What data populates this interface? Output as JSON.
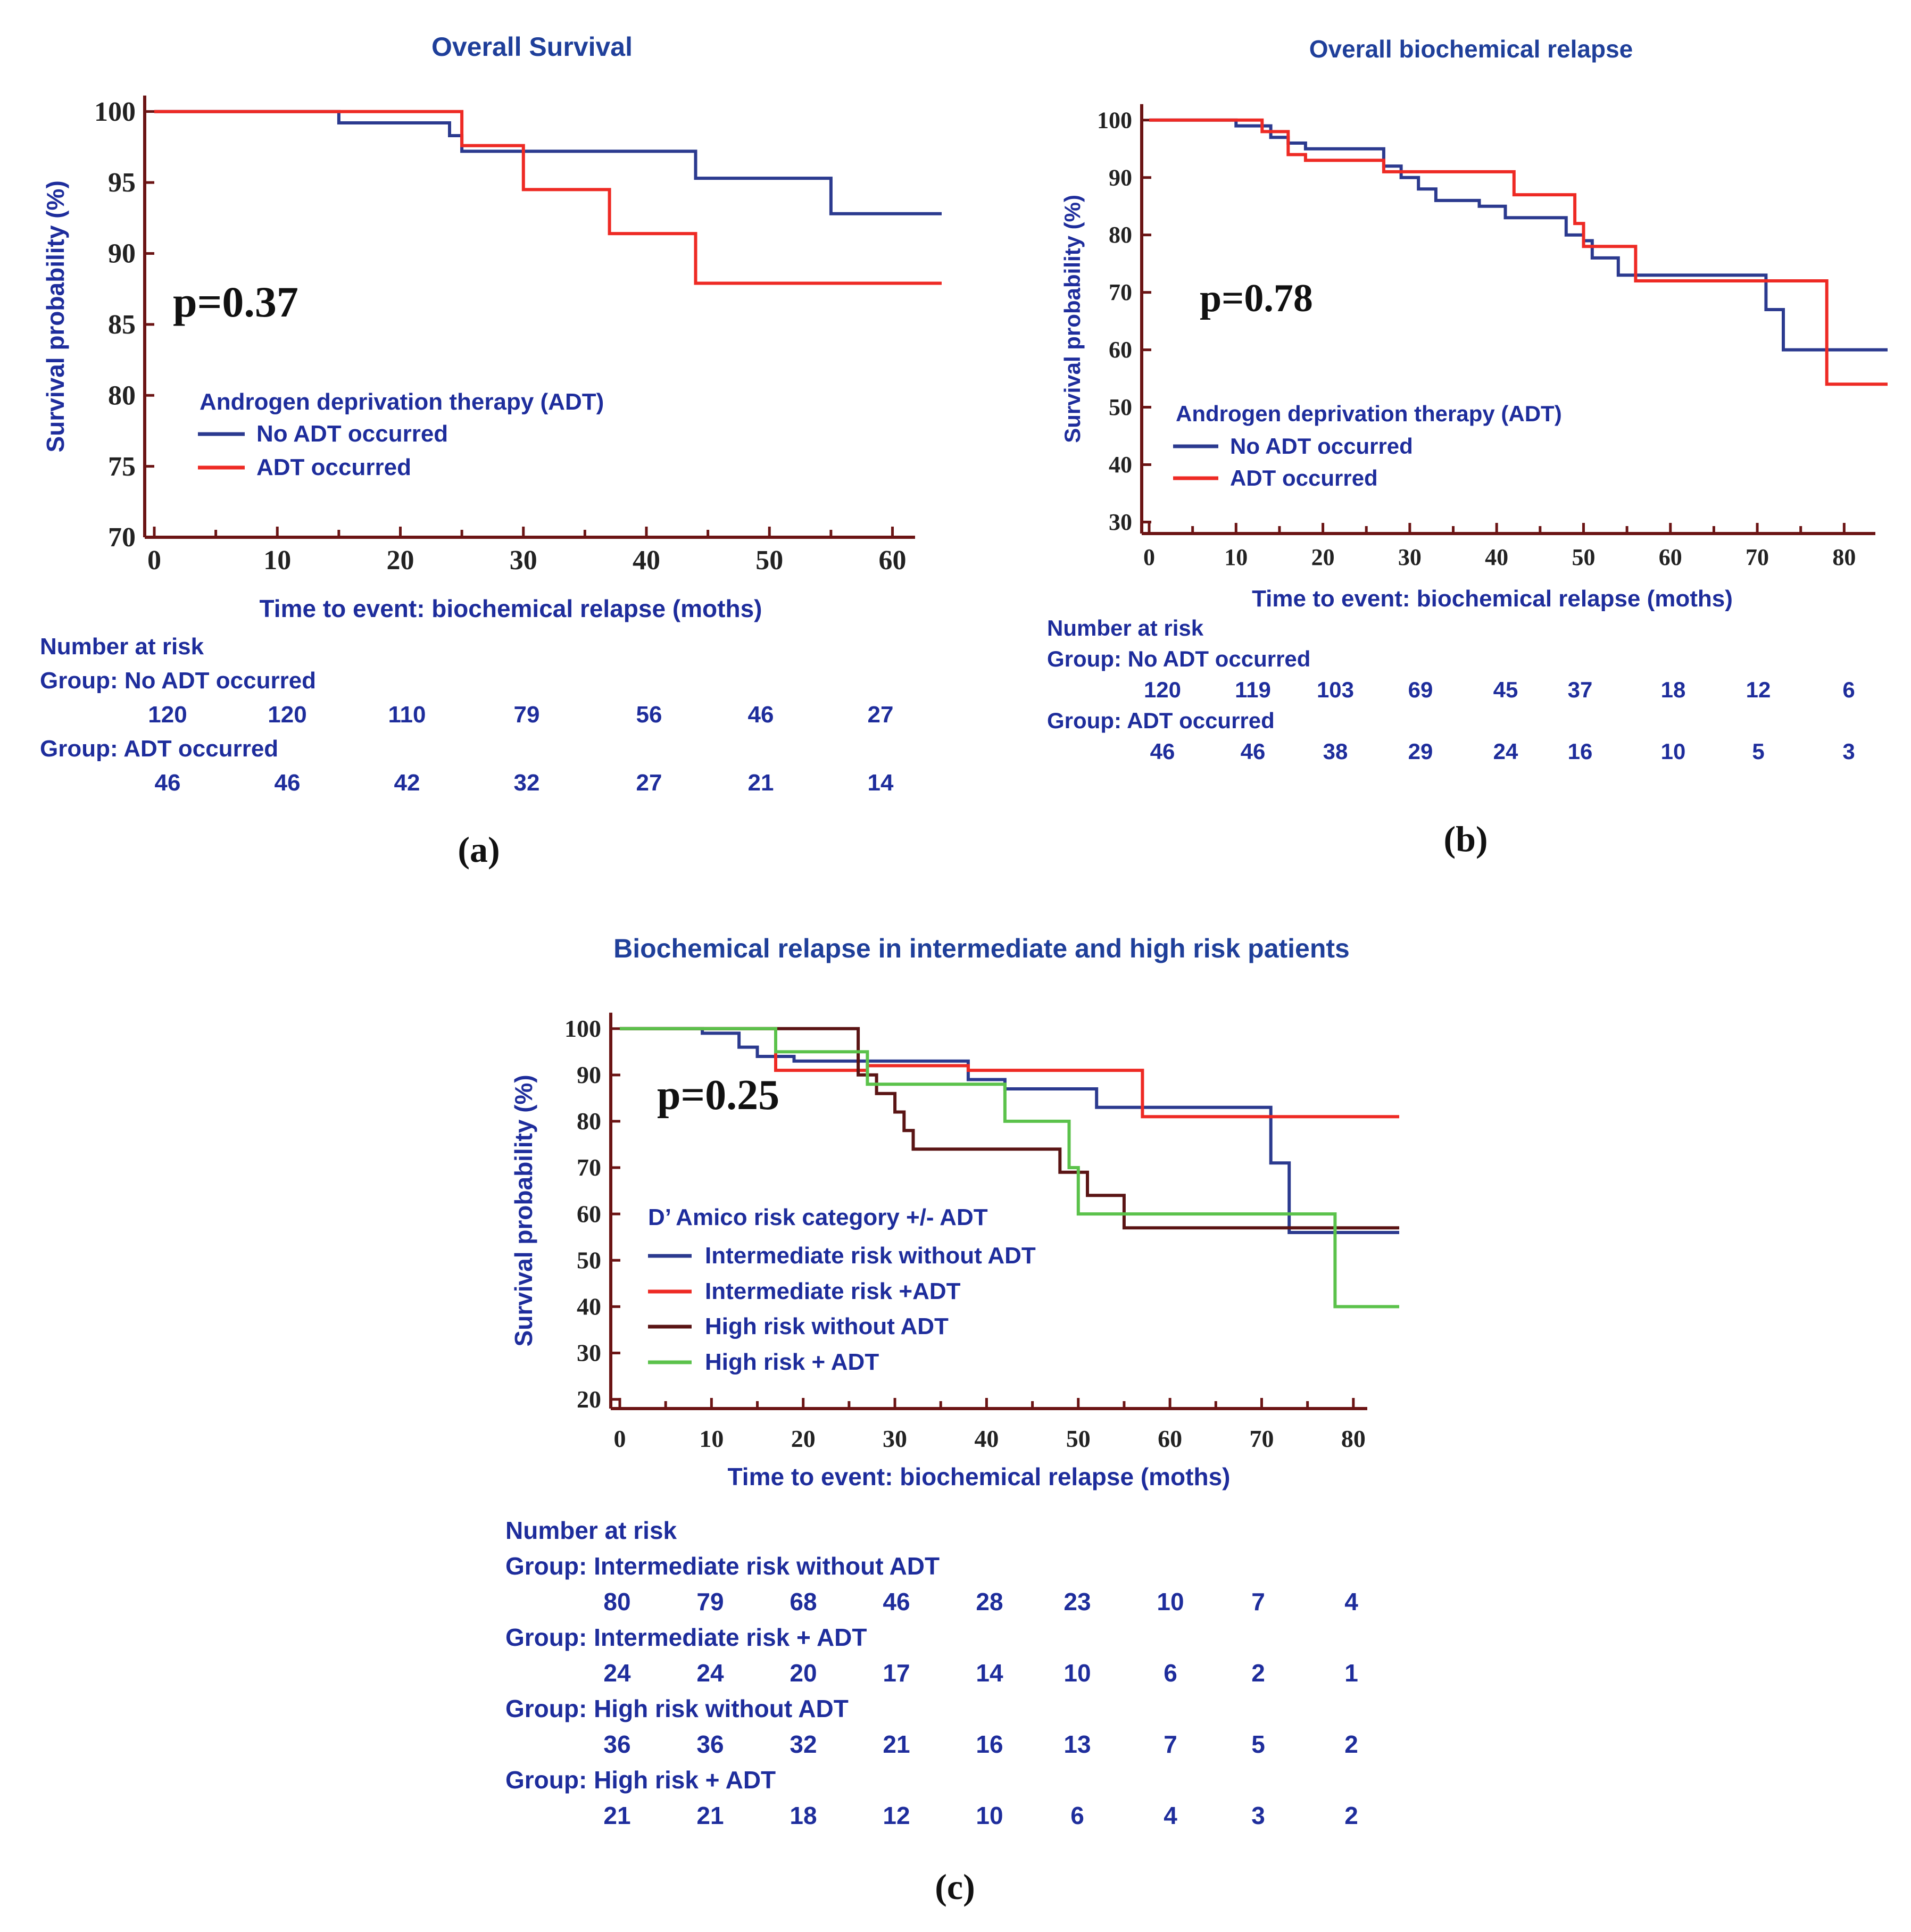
{
  "colors": {
    "title_blue": "#1f3f9a",
    "text_blue": "#1e2d9c",
    "axis": "#6b1414",
    "series_blue": "#2b3a8f",
    "series_red": "#ee2a24",
    "series_brown": "#5a1414",
    "series_green": "#5bc24b"
  },
  "chart_data": [
    {
      "id": "a",
      "type": "line",
      "title": "Overall Survival",
      "xlabel": "Time to event: biochemical relapse (moths)",
      "ylabel": "Survival probability (%)",
      "xlim": [
        0,
        64
      ],
      "ylim": [
        70,
        101
      ],
      "x_ticks": [
        0,
        10,
        20,
        30,
        40,
        50,
        60
      ],
      "y_ticks": [
        70,
        75,
        80,
        85,
        90,
        95,
        100
      ],
      "p_value": "p=0.37",
      "legend_title": "Androgen deprivation therapy (ADT)",
      "series": [
        {
          "name": "No ADT occurred",
          "color": "#2b3a8f",
          "steps": [
            [
              0,
              100
            ],
            [
              15,
              100
            ],
            [
              15,
              99.2
            ],
            [
              24,
              99.2
            ],
            [
              24,
              98.3
            ],
            [
              25,
              98.3
            ],
            [
              25,
              97.2
            ],
            [
              44,
              97.2
            ],
            [
              44,
              95.3
            ],
            [
              55,
              95.3
            ],
            [
              55,
              92.8
            ],
            [
              64,
              92.8
            ]
          ]
        },
        {
          "name": "ADT occurred",
          "color": "#ee2a24",
          "steps": [
            [
              0,
              100
            ],
            [
              25,
              100
            ],
            [
              25,
              97.6
            ],
            [
              30,
              97.6
            ],
            [
              30,
              94.5
            ],
            [
              37,
              94.5
            ],
            [
              37,
              91.4
            ],
            [
              44,
              91.4
            ],
            [
              44,
              87.9
            ],
            [
              64,
              87.9
            ]
          ]
        }
      ],
      "risk_table": {
        "heading": "Number at risk",
        "groups": [
          {
            "label": "Group: No ADT occurred",
            "values": [
              "120",
              "120",
              "110",
              "79",
              "56",
              "46",
              "27"
            ]
          },
          {
            "label": "Group: ADT occurred",
            "values": [
              "46",
              "46",
              "42",
              "32",
              "27",
              "21",
              "14"
            ]
          }
        ]
      },
      "caption": "(a)"
    },
    {
      "id": "b",
      "type": "line",
      "title": "Overall biochemical relapse",
      "xlabel": "Time to event: biochemical relapse (moths)",
      "ylabel": "Survival probability (%)",
      "xlim": [
        0,
        85
      ],
      "ylim": [
        28,
        101
      ],
      "x_ticks": [
        0,
        10,
        20,
        30,
        40,
        50,
        60,
        70,
        80
      ],
      "y_ticks": [
        30,
        40,
        50,
        60,
        70,
        80,
        90,
        100
      ],
      "p_value": "p=0.78",
      "legend_title": "Androgen deprivation therapy (ADT)",
      "series": [
        {
          "name": "No ADT occurred",
          "color": "#2b3a8f",
          "steps": [
            [
              0,
              100
            ],
            [
              10,
              100
            ],
            [
              10,
              99
            ],
            [
              14,
              99
            ],
            [
              14,
              97
            ],
            [
              16,
              97
            ],
            [
              16,
              96
            ],
            [
              18,
              96
            ],
            [
              18,
              95
            ],
            [
              27,
              95
            ],
            [
              27,
              92
            ],
            [
              29,
              92
            ],
            [
              29,
              90
            ],
            [
              31,
              90
            ],
            [
              31,
              88
            ],
            [
              33,
              88
            ],
            [
              33,
              86
            ],
            [
              38,
              86
            ],
            [
              38,
              85
            ],
            [
              41,
              85
            ],
            [
              41,
              83
            ],
            [
              48,
              83
            ],
            [
              48,
              80
            ],
            [
              50,
              80
            ],
            [
              50,
              79
            ],
            [
              51,
              79
            ],
            [
              51,
              76
            ],
            [
              54,
              76
            ],
            [
              54,
              73
            ],
            [
              71,
              73
            ],
            [
              71,
              67
            ],
            [
              73,
              67
            ],
            [
              73,
              60
            ],
            [
              85,
              60
            ]
          ]
        },
        {
          "name": "ADT occurred",
          "color": "#ee2a24",
          "steps": [
            [
              0,
              100
            ],
            [
              13,
              100
            ],
            [
              13,
              98
            ],
            [
              16,
              98
            ],
            [
              16,
              94
            ],
            [
              18,
              94
            ],
            [
              18,
              93
            ],
            [
              27,
              93
            ],
            [
              27,
              91
            ],
            [
              42,
              91
            ],
            [
              42,
              87
            ],
            [
              49,
              87
            ],
            [
              49,
              82
            ],
            [
              50,
              82
            ],
            [
              50,
              78
            ],
            [
              56,
              78
            ],
            [
              56,
              72
            ],
            [
              78,
              72
            ],
            [
              78,
              54
            ],
            [
              85,
              54
            ]
          ]
        }
      ],
      "risk_table": {
        "heading": "Number at risk",
        "groups": [
          {
            "label": "Group: No ADT occurred",
            "values": [
              "120",
              "119",
              "103",
              "69",
              "45",
              "37",
              "18",
              "12",
              "6"
            ]
          },
          {
            "label": "Group: ADT occurred",
            "values": [
              "46",
              "46",
              "38",
              "29",
              "24",
              "16",
              "10",
              "5",
              "3"
            ]
          }
        ]
      },
      "caption": "(b)"
    },
    {
      "id": "c",
      "type": "line",
      "title": "Biochemical relapse in intermediate and high risk patients",
      "xlabel": "Time to event: biochemical relapse (moths)",
      "ylabel": "Survival probability (%)",
      "xlim": [
        0,
        85
      ],
      "ylim": [
        18,
        101
      ],
      "x_ticks": [
        0,
        10,
        20,
        30,
        40,
        50,
        60,
        70,
        80
      ],
      "y_ticks": [
        20,
        30,
        40,
        50,
        60,
        70,
        80,
        90,
        100
      ],
      "p_value": "p=0.25",
      "legend_title": "D’ Amico risk category +/- ADT",
      "series": [
        {
          "name": "Intermediate risk without ADT",
          "color": "#2b3a8f",
          "steps": [
            [
              0,
              100
            ],
            [
              9,
              100
            ],
            [
              9,
              99
            ],
            [
              13,
              99
            ],
            [
              13,
              96
            ],
            [
              15,
              96
            ],
            [
              15,
              94
            ],
            [
              19,
              94
            ],
            [
              19,
              93
            ],
            [
              38,
              93
            ],
            [
              38,
              89
            ],
            [
              42,
              89
            ],
            [
              42,
              87
            ],
            [
              52,
              87
            ],
            [
              52,
              83
            ],
            [
              71,
              83
            ],
            [
              71,
              71
            ],
            [
              73,
              71
            ],
            [
              73,
              56
            ],
            [
              85,
              56
            ]
          ]
        },
        {
          "name": "Intermediate risk +ADT",
          "color": "#ee2a24",
          "steps": [
            [
              0,
              100
            ],
            [
              17,
              100
            ],
            [
              17,
              91
            ],
            [
              27,
              91
            ],
            [
              27,
              92
            ],
            [
              38,
              92
            ],
            [
              38,
              91
            ],
            [
              57,
              91
            ],
            [
              57,
              81
            ],
            [
              85,
              81
            ]
          ]
        },
        {
          "name": "High risk without ADT",
          "color": "#5a1414",
          "steps": [
            [
              0,
              100
            ],
            [
              26,
              100
            ],
            [
              26,
              90
            ],
            [
              28,
              90
            ],
            [
              28,
              86
            ],
            [
              30,
              86
            ],
            [
              30,
              82
            ],
            [
              31,
              82
            ],
            [
              31,
              78
            ],
            [
              32,
              78
            ],
            [
              32,
              74
            ],
            [
              48,
              74
            ],
            [
              48,
              69
            ],
            [
              51,
              69
            ],
            [
              51,
              64
            ],
            [
              55,
              64
            ],
            [
              55,
              57
            ],
            [
              85,
              57
            ]
          ]
        },
        {
          "name": "High risk + ADT",
          "color": "#5bc24b",
          "steps": [
            [
              0,
              100
            ],
            [
              17,
              100
            ],
            [
              17,
              95
            ],
            [
              27,
              95
            ],
            [
              27,
              88
            ],
            [
              42,
              88
            ],
            [
              42,
              80
            ],
            [
              49,
              80
            ],
            [
              49,
              70
            ],
            [
              50,
              70
            ],
            [
              50,
              60
            ],
            [
              78,
              60
            ],
            [
              78,
              40
            ],
            [
              85,
              40
            ]
          ]
        }
      ],
      "risk_table": {
        "heading": "Number at risk",
        "groups": [
          {
            "label": "Group: Intermediate risk without ADT",
            "values": [
              "80",
              "79",
              "68",
              "46",
              "28",
              "23",
              "10",
              "7",
              "4"
            ]
          },
          {
            "label": "Group: Intermediate risk + ADT",
            "values": [
              "24",
              "24",
              "20",
              "17",
              "14",
              "10",
              "6",
              "2",
              "1"
            ]
          },
          {
            "label": "Group: High risk without ADT",
            "values": [
              "36",
              "36",
              "32",
              "21",
              "16",
              "13",
              "7",
              "5",
              "2"
            ]
          },
          {
            "label": "Group: High risk + ADT",
            "values": [
              "21",
              "21",
              "18",
              "12",
              "10",
              "6",
              "4",
              "3",
              "2"
            ]
          }
        ]
      },
      "caption": "(c)"
    }
  ]
}
